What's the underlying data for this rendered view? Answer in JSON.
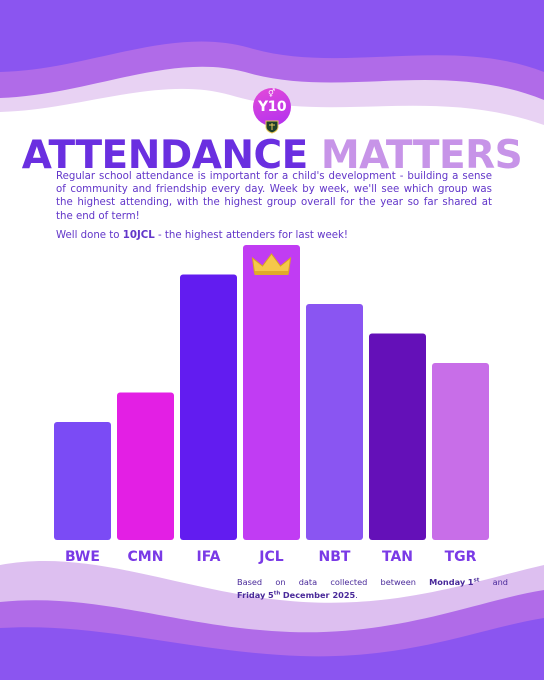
{
  "colors": {
    "title_primary": "#6a2fe0",
    "title_accent": "#c794e8",
    "body_text": "#6236c9",
    "wave_dark": "#8b55f0",
    "wave_light": "#ddbff0",
    "crown": "#f5c84a"
  },
  "badge": {
    "label": "Y10",
    "icon": "gender-symbol-icon",
    "crest_icon": "school-crest-icon"
  },
  "header": {
    "title_part1": "ATTENDANCE",
    "title_part2": "MATTERS",
    "intro": "Regular school attendance is important for a child's development - building a sense of community and friendship every day. Week by week, we'll see which group was the highest attending, with the highest group overall for the year so far shared at the end of term!",
    "note_prefix": "Well done to ",
    "note_group": "10JCL",
    "note_suffix": " - the highest attenders for last week!"
  },
  "chart_data": {
    "type": "bar",
    "categories": [
      "BWE",
      "CMN",
      "IFA",
      "JCL",
      "NBT",
      "TAN",
      "TGR"
    ],
    "values": [
      40,
      50,
      90,
      100,
      80,
      70,
      60
    ],
    "ylim": [
      0,
      100
    ],
    "value_unit": "relative attendance (no axis printed)",
    "bar_colors": [
      "#7b4bf5",
      "#e31fe4",
      "#621cf0",
      "#c13cf3",
      "#8a55f2",
      "#6410b8",
      "#c86ee8"
    ],
    "grid": false,
    "legend": "none",
    "highlight": {
      "category": "JCL",
      "icon": "crown-icon"
    }
  },
  "footer": {
    "w1": "Based",
    "w2": "on",
    "w3": "data",
    "w4": "collected",
    "w5": "between",
    "day1": "Monday",
    "num1": "1",
    "sup1": "st",
    "w6": "and",
    "day2": "Friday",
    "num2": "5",
    "sup2": "th",
    "date_tail": "December 2025",
    "end": "."
  }
}
